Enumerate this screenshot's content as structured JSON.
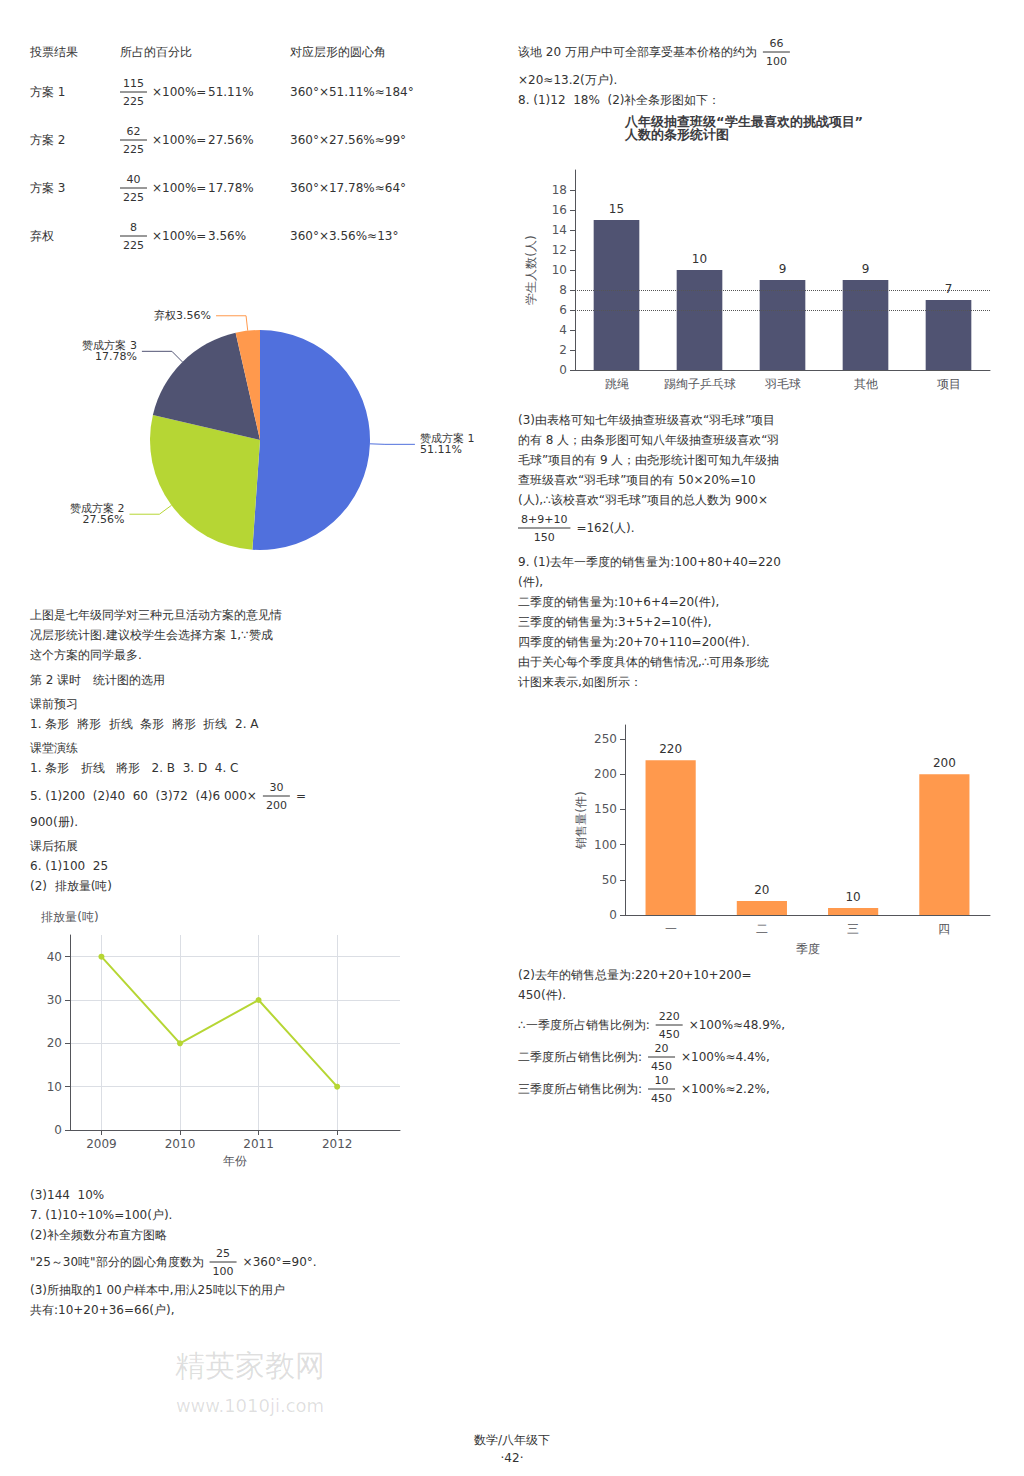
{
  "chart_data": [
    {
      "type": "pie",
      "values": [
        51.11,
        27.56,
        17.78,
        3.56
      ],
      "value_labels": [
        "赞成方案 1\n51.11%",
        "赞成方案 2\n27.56%",
        "赞成方案 3\n17.78%",
        "弃权3.56%"
      ],
      "data_labels": true,
      "annotations": [
        [
          "投票结果",
          "所占的百分比",
          "对应层形的圆心角"
        ],
        [
          "方案 1",
          [
            "115",
            "225"
          ],
          "×100%=",
          "51.11%",
          "360°×51.11%≈184°"
        ],
        [
          "方案 2",
          [
            "62",
            "225"
          ],
          "×100%=",
          "27.56%",
          "360°×27.56%≈99°"
        ],
        [
          "方案 3",
          [
            "40",
            "225"
          ],
          "×100%=",
          "17.78%",
          "360°×17.78%≈64°"
        ],
        [
          "弃权",
          [
            "8",
            "225"
          ],
          "×100%=",
          "3.56%",
          "360°×3.56%≈13°"
        ],
        [
          "上图是七年级同学对三种元旦活动方案的意见情"
        ],
        [
          "况层形统计图.建议校学生会选择方案 1,∵赞成"
        ],
        [
          "这个方案的同学最多."
        ]
      ]
    },
    {
      "type": "line",
      "x": [
        2009,
        2010,
        2011,
        2012
      ],
      "values": [
        40,
        20,
        30,
        10
      ],
      "xlim": [
        2008.6,
        2012.8
      ],
      "xticks": [
        2009,
        2010,
        2011,
        2012
      ],
      "ylim": [
        0,
        45
      ],
      "yticks": [
        0,
        10,
        20,
        30,
        40
      ],
      "xlabel": "年份",
      "ylabel": "排放量(吨)",
      "grid": true,
      "marker": "circle",
      "annotations": [
        [
          "第 2 课时   统计图的选用"
        ],
        [
          "课前预习"
        ],
        [
          "1. 条形  將形  折线  条形  將形  折线  2. A"
        ],
        [
          "课堂演练"
        ],
        [
          "1. 条形   折线   將形   2. B  3. D  4. C"
        ],
        [
          "5. (1)200  (2)40  60  (3)72  (4)6 000×",
          [
            "30",
            "200"
          ],
          "="
        ],
        [
          "900(册)."
        ],
        [
          "课后拓展"
        ],
        [
          "6. (1)100  25"
        ],
        [
          "(2)  排放量(吨)"
        ],
        [
          "(3)144  10%"
        ],
        [
          "7. (1)10÷10%=100(户)."
        ],
        [
          "(2)补全频数分布直方图略"
        ],
        [
          "\"25～30吨\"部分的圆心角度数为",
          [
            "25",
            "100"
          ],
          "×360°=90°."
        ],
        [
          "(3)所抽取的1 00户样本中,用汄25吨以下的用户"
        ],
        [
          "共有:10+20+36=66(户),"
        ]
      ]
    },
    {
      "type": "bar",
      "title": "八年级抽查班级“学生最喜欢的挑战项目”\n人数的条形统计图",
      "categories": [
        "跳绳",
        "踢绚子乒乓球",
        "羽毛球",
        "其他",
        "项目"
      ],
      "values": [
        15,
        10,
        9,
        9,
        7
      ],
      "ylim": [
        0,
        20
      ],
      "yticks": [
        0,
        2,
        4,
        6,
        8,
        10,
        12,
        14,
        16,
        18
      ],
      "ylabel": "学生人数(人)",
      "data_labels": true,
      "grid": false,
      "reference_lines": [
        6,
        8
      ],
      "annotations": [
        [
          "该地 20 万用户中可全部享受基本价格的约为",
          [
            "66",
            "100"
          ]
        ],
        [
          "×20≈13.2(万户)."
        ],
        [
          "8. (1)12  18%  (2)补全条形图如下："
        ],
        [
          "(3)由表格可知七年级抽查班级喜欢“羽毛球”项目"
        ],
        [
          "的有 8 人；由条形图可知八年级抽查班级喜欢“羽"
        ],
        [
          "毛球”项目的有 9 人；由尧形统计图可知九年级抽"
        ],
        [
          "查班级喜欢“羽毛球”项目的有 50×20%=10"
        ],
        [
          "(人),∴该校喜欢“羽毛球”项目的总人数为 900×"
        ],
        [
          [
            "8+9+10",
            "150"
          ],
          "=162(人)."
        ]
      ]
    },
    {
      "type": "bar",
      "categories": [
        "一",
        "二",
        "三",
        "四"
      ],
      "values": [
        220,
        20,
        10,
        200
      ],
      "ylim": [
        0,
        270
      ],
      "yticks": [
        0,
        50,
        100,
        150,
        200,
        250
      ],
      "xlabel": "季度",
      "ylabel": "销售量(件)",
      "data_labels": true,
      "grid": false,
      "annotations": [
        [
          "9. (1)去年一季度的销售量为:100+80+40=220"
        ],
        [
          "(件),"
        ],
        [
          "二季度的销售量为:10+6+4=20(件),"
        ],
        [
          "三季度的销售量为:3+5+2=10(件),"
        ],
        [
          "四季度的销售量为:20+70+110=200(件)."
        ],
        [
          "由于关心每个季度具体的销售情况,∴可用条形统"
        ],
        [
          "计图来表示,如图所示："
        ],
        [
          "(2)去年的销售总量为:220+20+10+200="
        ],
        [
          "450(件)."
        ],
        [
          "∴一季度所占销售比例为:",
          [
            "220",
            "450"
          ],
          "×100%≈48.9%,"
        ],
        [
          "二季度所占销售比例为:",
          [
            "20",
            "450"
          ],
          "×100%≈4.4%,"
        ],
        [
          "三季度所占销售比例为:",
          [
            "10",
            "450"
          ],
          "×100%≈2.2%,"
        ],
        [
          "数学/八年级下"
        ],
        [
          "·42·"
        ],
        [
          "精英家教网"
        ],
        [
          "www.1010ji.com"
        ]
      ]
    }
  ]
}
